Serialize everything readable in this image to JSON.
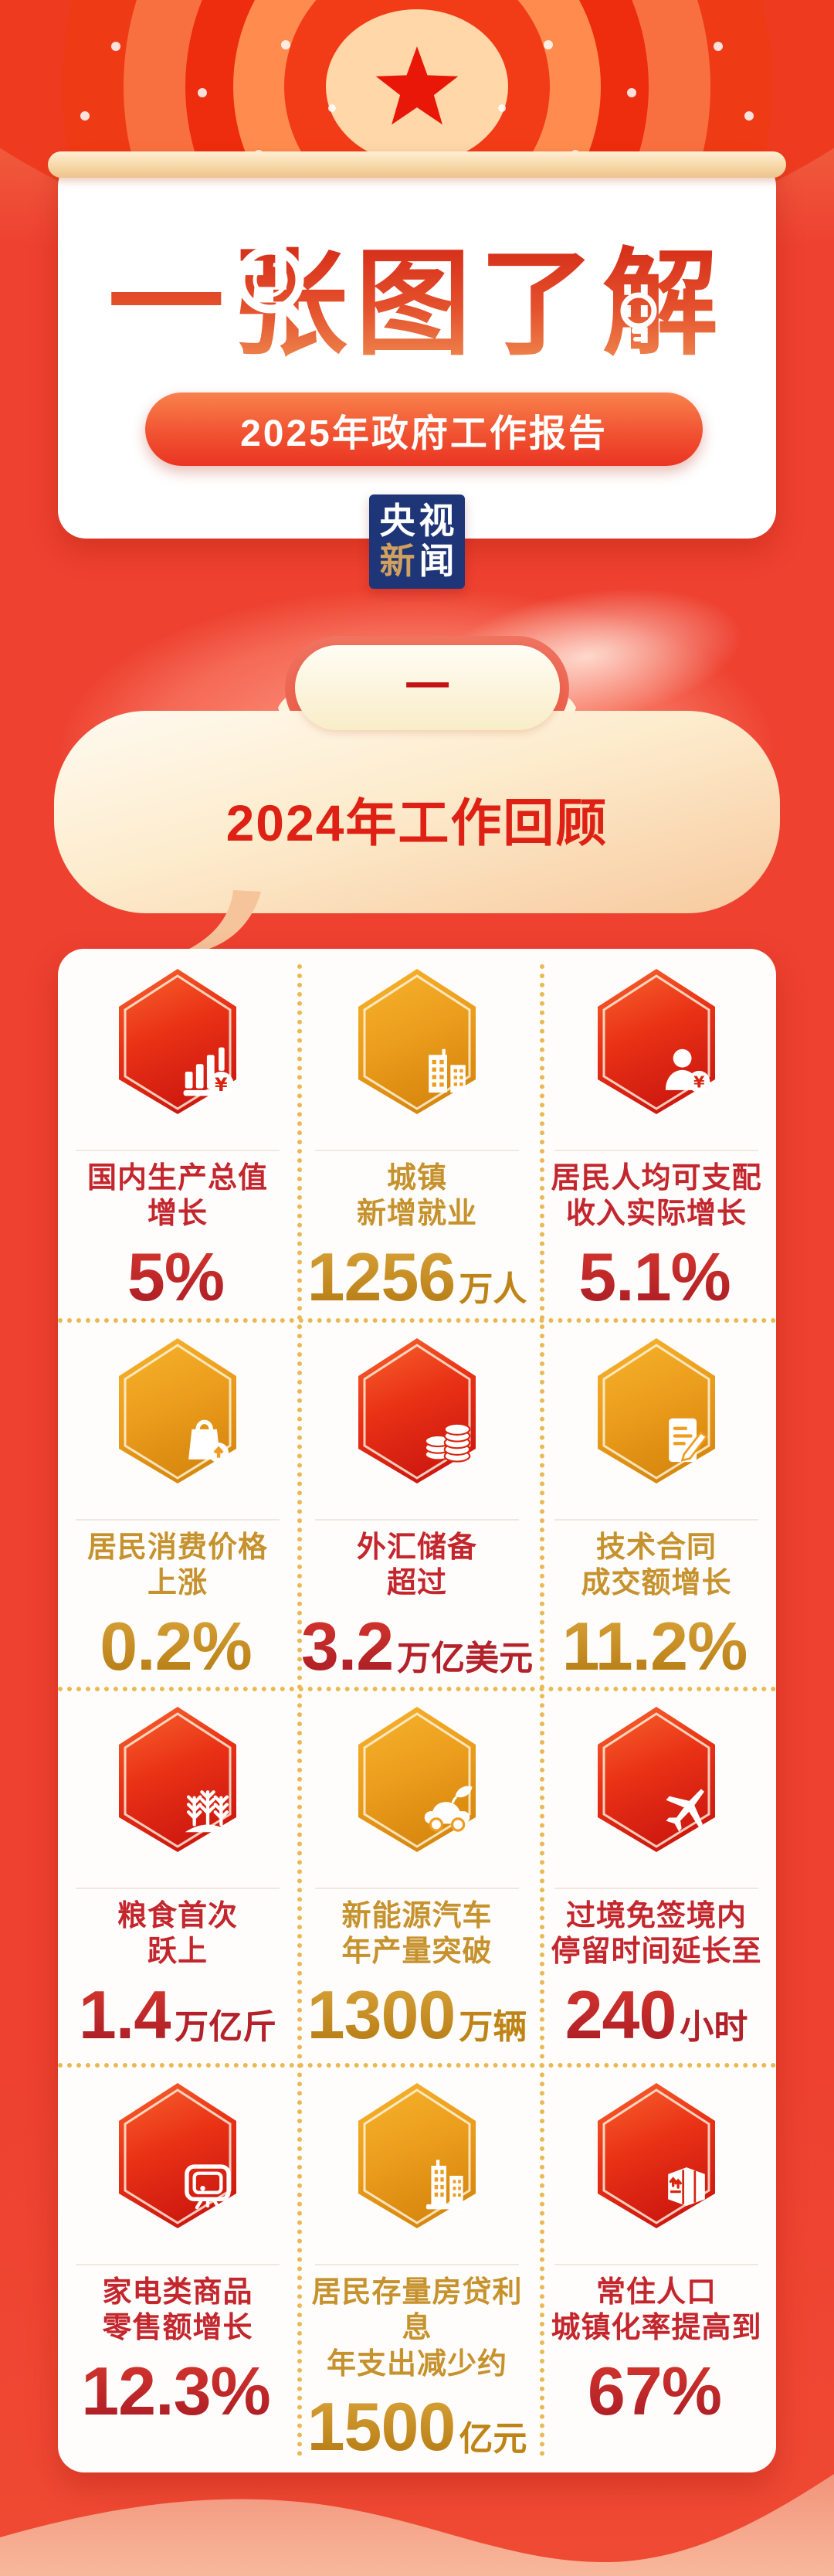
{
  "masthead": {
    "title": "一张图了解",
    "subtitle": "2025年政府工作报告",
    "logo": {
      "line1": "央视",
      "char_xin": "新",
      "char_wen": "闻"
    }
  },
  "section": {
    "tab": "一",
    "title": "2024年工作回顾"
  },
  "stats": {
    "cells": [
      {
        "icon": "bar-chart-yuan-icon",
        "theme": "red",
        "lines": [
          "国内生产总值",
          "增长"
        ],
        "num": "5%",
        "unit": ""
      },
      {
        "icon": "city-buildings-icon",
        "theme": "gold",
        "lines": [
          "城镇",
          "新增就业"
        ],
        "num": "1256",
        "unit": "万人"
      },
      {
        "icon": "person-yuan-icon",
        "theme": "red",
        "lines": [
          "居民人均可支配",
          "收入实际增长"
        ],
        "num": "5.1%",
        "unit": ""
      },
      {
        "icon": "shopping-bag-up-icon",
        "theme": "gold",
        "lines": [
          "居民消费价格",
          "上涨"
        ],
        "num": "0.2%",
        "unit": ""
      },
      {
        "icon": "coin-stacks-icon",
        "theme": "red",
        "lines": [
          "外汇储备",
          "超过"
        ],
        "num": "3.2",
        "unit": "万亿美元"
      },
      {
        "icon": "contract-pen-icon",
        "theme": "gold",
        "lines": [
          "技术合同",
          "成交额增长"
        ],
        "num": "11.2%",
        "unit": ""
      },
      {
        "icon": "wheat-icon",
        "theme": "red",
        "lines": [
          "粮食首次",
          "跃上"
        ],
        "num": "1.4",
        "unit": "万亿斤"
      },
      {
        "icon": "ev-car-leaf-icon",
        "theme": "gold",
        "lines": [
          "新能源汽车",
          "年产量突破"
        ],
        "num": "1300",
        "unit": "万辆"
      },
      {
        "icon": "airplane-icon",
        "theme": "red",
        "lines": [
          "过境免签境内",
          "停留时间延长至"
        ],
        "num": "240",
        "unit": "小时"
      },
      {
        "icon": "tv-appliance-icon",
        "theme": "red",
        "lines": [
          "家电类商品",
          "零售额增长"
        ],
        "num": "12.3%",
        "unit": ""
      },
      {
        "icon": "residential-building-icon",
        "theme": "gold",
        "lines": [
          "居民存量房贷利息",
          "年支出减少约"
        ],
        "num": "1500",
        "unit": "亿元"
      },
      {
        "icon": "moving-box-arrows-icon",
        "theme": "red",
        "lines": [
          "常住人口",
          "城镇化率提高到"
        ],
        "num": "67%",
        "unit": ""
      }
    ]
  },
  "colors": {
    "background_red": "#ee4130",
    "red_text": "#c4262d",
    "gold_text": "#c6922d",
    "dotted_divider": "#eab953",
    "hex_red_top": "#f8652f",
    "hex_red_bottom": "#cf1a10",
    "hex_gold_top": "#f6b42e",
    "hex_gold_bottom": "#d8890f",
    "logo_blue": "#1e3577",
    "logo_gold": "#cfa05e",
    "bubble_title_red": "#de2114"
  }
}
